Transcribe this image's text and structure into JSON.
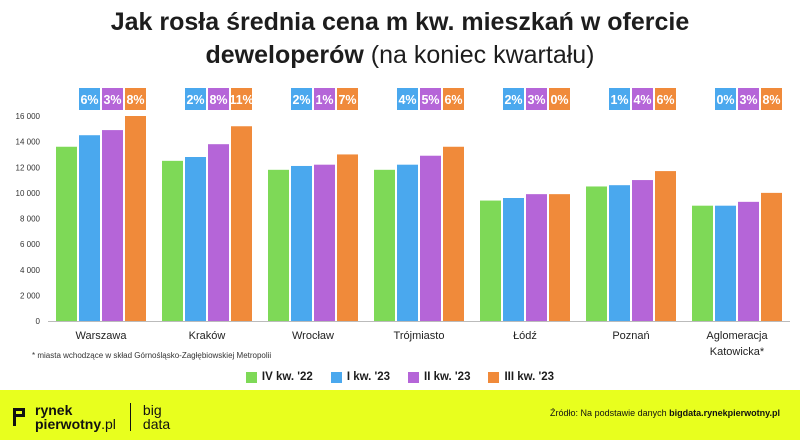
{
  "title": {
    "line1": "Jak rosła średnia cena m kw. mieszkań w ofercie",
    "line2_bold": "deweloperów",
    "line2_normal": "(na koniec kwartału)"
  },
  "footnote": "* miasta wchodzące w skład Górnośląsko-Zagłębiowskiej Metropolii",
  "source": {
    "prefix": "Źródło: Na podstawie danych",
    "site": "bigdata.rynekpierwotny.pl"
  },
  "logo": {
    "line1": "rynek",
    "line2": "pierwotny",
    "domain": ".pl",
    "big1": "big",
    "big2": "data"
  },
  "colors": {
    "IV kw. '22": "#7ed957",
    "I kw. '23": "#4aa8ee",
    "II kw. '23": "#b565d8",
    "III kw. '23": "#f08a3a",
    "footer": "#e8ff1e"
  },
  "chart_data": {
    "type": "bar",
    "categories": [
      "Warszawa",
      "Kraków",
      "Wrocław",
      "Trójmiasto",
      "Łódź",
      "Poznań",
      "Aglomeracja Katowicka*"
    ],
    "series": [
      {
        "name": "IV kw. '22",
        "values": [
          13600,
          12500,
          11800,
          11800,
          9400,
          10500,
          9000
        ]
      },
      {
        "name": "I kw. '23",
        "values": [
          14500,
          12800,
          12100,
          12200,
          9600,
          10600,
          9000
        ]
      },
      {
        "name": "II kw. '23",
        "values": [
          14900,
          13800,
          12200,
          12900,
          9900,
          11000,
          9300
        ]
      },
      {
        "name": "III kw. '23",
        "values": [
          16000,
          15200,
          13000,
          13600,
          9900,
          11700,
          10000
        ]
      }
    ],
    "growth_labels": [
      [
        "6%",
        "3%",
        "8%"
      ],
      [
        "2%",
        "8%",
        "11%"
      ],
      [
        "2%",
        "1%",
        "7%"
      ],
      [
        "4%",
        "5%",
        "6%"
      ],
      [
        "2%",
        "3%",
        "0%"
      ],
      [
        "1%",
        "4%",
        "6%"
      ],
      [
        "0%",
        "3%",
        "8%"
      ]
    ],
    "yticks": [
      "0",
      "2 000",
      "4 000",
      "6 000",
      "8 000",
      "10 000",
      "12 000",
      "14 000",
      "16 000"
    ],
    "ylim": [
      0,
      16000
    ],
    "grid": false,
    "legend": "bottom"
  }
}
